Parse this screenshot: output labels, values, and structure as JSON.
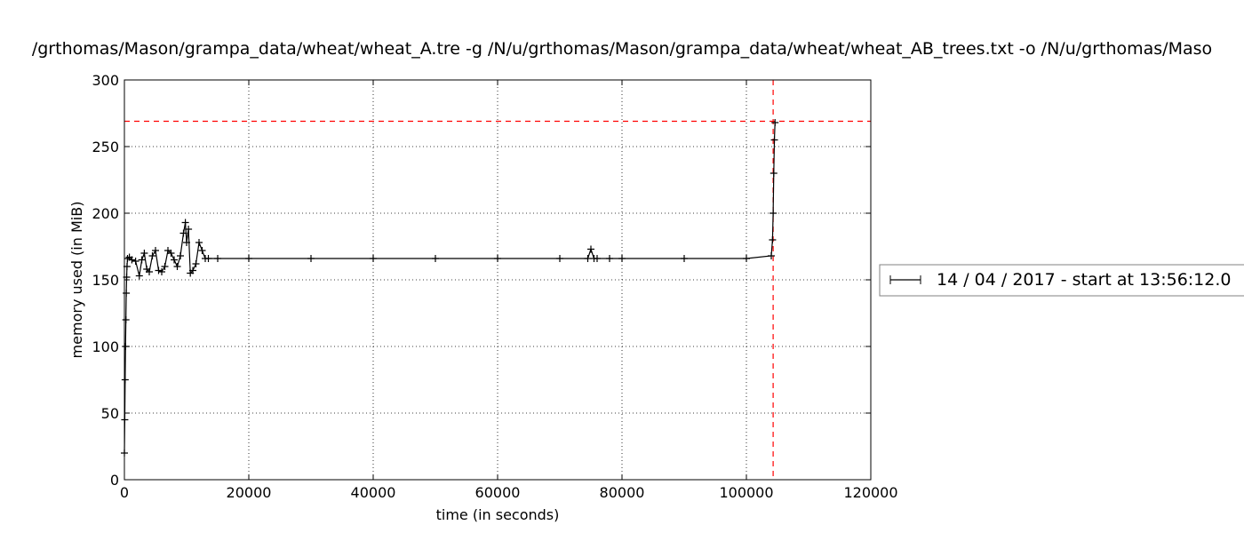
{
  "chart_data": {
    "type": "line",
    "title": "/grthomas/Mason/grampa_data/wheat/wheat_A.tre -g /N/u/grthomas/Mason/grampa_data/wheat/wheat_AB_trees.txt -o /N/u/grthomas/Maso",
    "xlabel": "time (in seconds)",
    "ylabel": "memory used (in MiB)",
    "xlim": [
      0,
      120000
    ],
    "ylim": [
      0,
      300
    ],
    "x_ticks": [
      0,
      20000,
      40000,
      60000,
      80000,
      100000,
      120000
    ],
    "y_ticks": [
      0,
      50,
      100,
      150,
      200,
      250,
      300
    ],
    "grid": true,
    "legend_position": "right, outside plot area",
    "marker": "plus",
    "series": [
      {
        "name": "14 / 04 / 2017 - start at 13:56:12.0",
        "color": "#000000",
        "x": [
          0,
          60,
          120,
          180,
          240,
          300,
          360,
          420,
          500,
          800,
          1200,
          1800,
          2400,
          2800,
          3200,
          3600,
          4000,
          4500,
          5000,
          5500,
          6000,
          6500,
          7000,
          7500,
          8000,
          8500,
          9000,
          9500,
          9800,
          10000,
          10300,
          10600,
          11000,
          11500,
          12000,
          12500,
          13000,
          13500,
          15000,
          20000,
          30000,
          40000,
          50000,
          60000,
          70000,
          74500,
          75000,
          75500,
          76000,
          78000,
          80000,
          90000,
          100000,
          104000,
          104200,
          104300,
          104400,
          104500,
          104600
        ],
        "values": [
          20,
          45,
          75,
          100,
          120,
          140,
          152,
          160,
          166,
          167,
          165,
          164,
          153,
          165,
          170,
          158,
          156,
          168,
          172,
          157,
          156,
          160,
          172,
          170,
          165,
          160,
          168,
          185,
          193,
          178,
          188,
          155,
          157,
          162,
          178,
          172,
          166,
          166,
          166,
          166,
          166,
          166,
          166,
          166,
          166,
          166,
          173,
          166,
          166,
          166,
          166,
          166,
          166,
          168,
          180,
          200,
          230,
          255,
          268
        ]
      }
    ],
    "reference_lines": [
      {
        "axis": "y",
        "value": 269,
        "color": "#ff0000",
        "style": "dashed"
      },
      {
        "axis": "x",
        "value": 104300,
        "color": "#ff0000",
        "style": "dashed"
      }
    ]
  }
}
